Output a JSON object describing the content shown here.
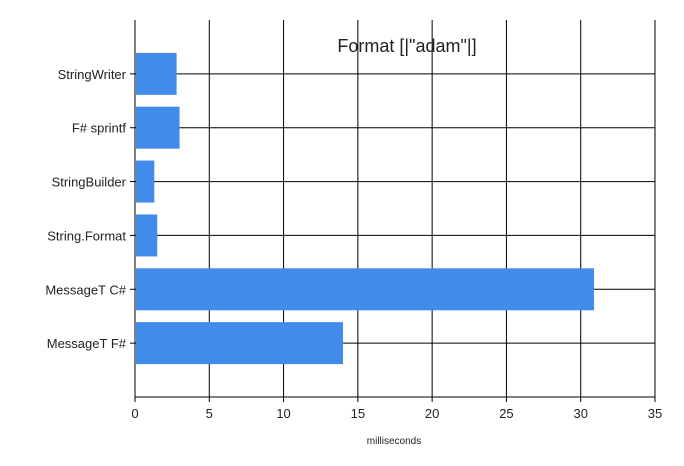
{
  "chart_data": {
    "type": "bar",
    "orientation": "horizontal",
    "title": "Format [|\"adam\"|]",
    "xlabel": "milliseconds",
    "ylabel": "",
    "categories": [
      "StringWriter",
      "F# sprintf",
      "StringBuilder",
      "String.Format",
      "MessageT C#",
      "MessageT F#"
    ],
    "values": [
      2.8,
      3.0,
      1.3,
      1.5,
      30.9,
      14.0
    ],
    "xlim": [
      0,
      35
    ],
    "xticks": [
      "0",
      "5",
      "10",
      "15",
      "20",
      "25",
      "30",
      "35"
    ],
    "grid": true,
    "legend": "none",
    "bar_color": "#428bea"
  }
}
